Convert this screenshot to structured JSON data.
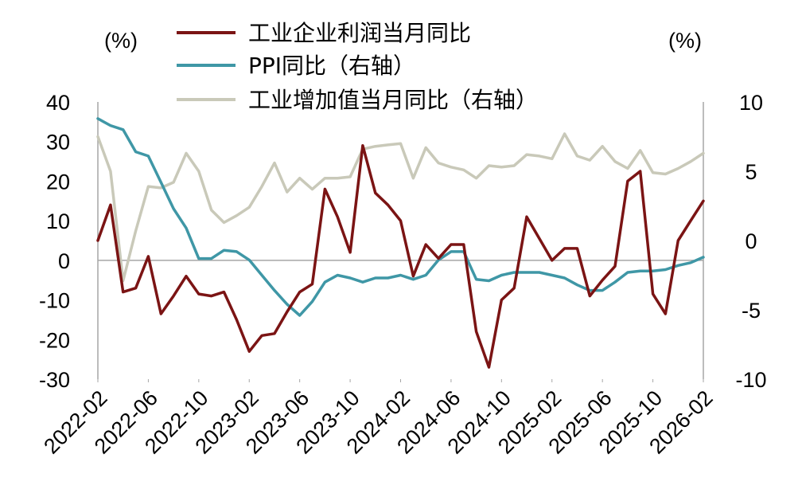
{
  "chart_data": {
    "type": "line",
    "title": "",
    "left_axis": {
      "unit": "(%)",
      "ylim": [
        -30,
        40
      ],
      "ticks": [
        40,
        30,
        20,
        10,
        0,
        -10,
        -20,
        -30
      ]
    },
    "right_axis": {
      "unit": "(%)",
      "ylim": [
        -10,
        10
      ],
      "ticks": [
        10,
        5,
        0,
        -5,
        -10
      ]
    },
    "x_tick_labels": [
      "2022-02",
      "2022-06",
      "2022-10",
      "2023-02",
      "2023-06",
      "2023-10",
      "2024-02",
      "2024-06",
      "2024-10",
      "2025-02",
      "2025-06",
      "2025-10",
      "2026-02"
    ],
    "legend": {
      "position": "top-center"
    },
    "series": [
      {
        "name": "工业企业利润当月同比",
        "axis": "left",
        "color": "#7b1414",
        "values": [
          5,
          14,
          -8,
          -7,
          1,
          -13.5,
          -9,
          -4,
          -8.5,
          -9,
          -8,
          -15,
          -23,
          -19,
          -18.5,
          -13,
          -8,
          -6,
          18,
          11,
          2,
          29,
          17,
          14,
          10,
          -4,
          4,
          0.5,
          4,
          4,
          -18,
          -27,
          -10,
          -7,
          11,
          5.5,
          0,
          3,
          3,
          -9,
          -5,
          -1.5,
          20,
          22.5,
          -8.5,
          -13.5,
          5,
          10,
          15
        ]
      },
      {
        "name": "PPI同比（右轴）",
        "axis": "right",
        "color": "#3f97a6",
        "values": [
          8.8,
          8.3,
          8,
          6.4,
          6.1,
          4.2,
          2.3,
          0.9,
          -1.3,
          -1.3,
          -0.7,
          -0.8,
          -1.4,
          -2.5,
          -3.6,
          -4.6,
          -5.4,
          -4.4,
          -3,
          -2.5,
          -2.7,
          -3,
          -2.7,
          -2.7,
          -2.5,
          -2.8,
          -2.5,
          -1.4,
          -0.8,
          -0.8,
          -2.8,
          -2.9,
          -2.5,
          -2.3,
          -2.3,
          -2.3,
          -2.5,
          -2.7,
          -3.2,
          -3.6,
          -3.6,
          -3,
          -2.3,
          -2.2,
          -2.2,
          -2.1,
          -1.8,
          -1.6,
          -1.2
        ]
      },
      {
        "name": "工业增加值当月同比（右轴）",
        "axis": "right",
        "color": "#c9c9b9",
        "values": [
          7.5,
          5,
          -2.9,
          0.7,
          3.9,
          3.8,
          4.2,
          6.3,
          5,
          2.2,
          1.3,
          1.8,
          2.4,
          3.9,
          5.6,
          3.5,
          4.5,
          3.7,
          4.5,
          4.5,
          4.6,
          6.6,
          6.8,
          6.9,
          7,
          4.5,
          6.7,
          5.6,
          5.3,
          5.1,
          4.5,
          5.4,
          5.3,
          5.4,
          6.2,
          6.1,
          5.9,
          7.7,
          6.1,
          5.8,
          6.8,
          5.7,
          5.2,
          6.5,
          4.9,
          4.8,
          5.2,
          5.7,
          6.3
        ]
      }
    ]
  }
}
